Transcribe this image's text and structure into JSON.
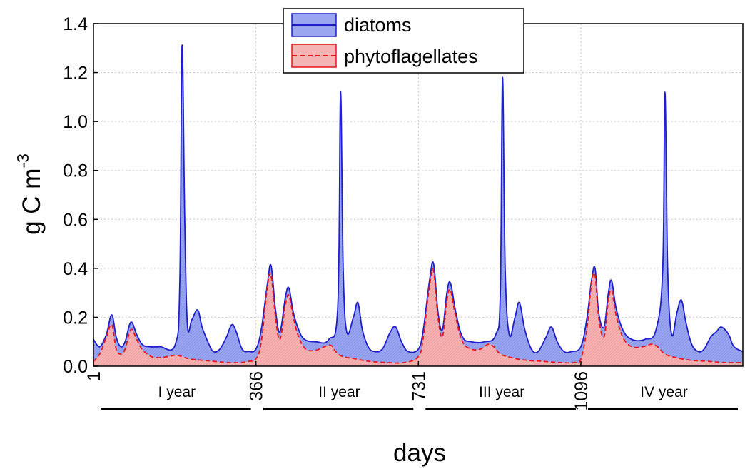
{
  "chart_data": {
    "type": "area",
    "title": "",
    "xlabel": "days",
    "ylabel": {
      "base": "g C m",
      "sup": "-3"
    },
    "xlim": [
      1,
      1460
    ],
    "ylim": [
      0,
      1.4
    ],
    "yticks": [
      "0.0",
      "0.2",
      "0.4",
      "0.6",
      "0.8",
      "1.0",
      "1.2",
      "1.4"
    ],
    "xticks": [
      {
        "value": 1,
        "label": "1"
      },
      {
        "value": 366,
        "label": "366"
      },
      {
        "value": 731,
        "label": "731"
      },
      {
        "value": 1096,
        "label": "1096"
      }
    ],
    "year_labels": [
      "I year",
      "II year",
      "III year",
      "IV year"
    ],
    "grid": true,
    "legend_position": "top-center",
    "colors": {
      "diatoms_line": "#1f1fcc",
      "diatoms_fill": "#9aa6ef",
      "phyto_line": "#e8161b",
      "phyto_fill": "#f6b3b3"
    },
    "series": [
      {
        "name": "diatoms",
        "style": "solid",
        "points": [
          [
            1,
            0.11
          ],
          [
            15,
            0.08
          ],
          [
            30,
            0.13
          ],
          [
            42,
            0.21
          ],
          [
            52,
            0.12
          ],
          [
            62,
            0.08
          ],
          [
            72,
            0.1
          ],
          [
            85,
            0.18
          ],
          [
            98,
            0.13
          ],
          [
            110,
            0.09
          ],
          [
            125,
            0.08
          ],
          [
            150,
            0.08
          ],
          [
            185,
            0.09
          ],
          [
            195,
            0.35
          ],
          [
            200,
            1.31
          ],
          [
            206,
            0.6
          ],
          [
            212,
            0.17
          ],
          [
            222,
            0.19
          ],
          [
            235,
            0.23
          ],
          [
            245,
            0.16
          ],
          [
            258,
            0.1
          ],
          [
            270,
            0.06
          ],
          [
            285,
            0.07
          ],
          [
            300,
            0.12
          ],
          [
            312,
            0.17
          ],
          [
            322,
            0.14
          ],
          [
            335,
            0.07
          ],
          [
            350,
            0.06
          ],
          [
            366,
            0.07
          ],
          [
            378,
            0.15
          ],
          [
            392,
            0.34
          ],
          [
            400,
            0.41
          ],
          [
            410,
            0.23
          ],
          [
            420,
            0.14
          ],
          [
            432,
            0.28
          ],
          [
            440,
            0.32
          ],
          [
            450,
            0.22
          ],
          [
            462,
            0.15
          ],
          [
            475,
            0.11
          ],
          [
            500,
            0.1
          ],
          [
            530,
            0.11
          ],
          [
            550,
            0.25
          ],
          [
            556,
            1.12
          ],
          [
            562,
            0.4
          ],
          [
            570,
            0.14
          ],
          [
            585,
            0.2
          ],
          [
            595,
            0.26
          ],
          [
            605,
            0.15
          ],
          [
            618,
            0.08
          ],
          [
            632,
            0.06
          ],
          [
            650,
            0.07
          ],
          [
            668,
            0.14
          ],
          [
            680,
            0.16
          ],
          [
            693,
            0.1
          ],
          [
            708,
            0.06
          ],
          [
            731,
            0.07
          ],
          [
            742,
            0.15
          ],
          [
            756,
            0.35
          ],
          [
            765,
            0.42
          ],
          [
            775,
            0.22
          ],
          [
            785,
            0.15
          ],
          [
            795,
            0.3
          ],
          [
            803,
            0.34
          ],
          [
            815,
            0.22
          ],
          [
            830,
            0.12
          ],
          [
            850,
            0.1
          ],
          [
            880,
            0.1
          ],
          [
            905,
            0.13
          ],
          [
            915,
            0.3
          ],
          [
            920,
            1.18
          ],
          [
            926,
            0.4
          ],
          [
            935,
            0.13
          ],
          [
            948,
            0.2
          ],
          [
            958,
            0.26
          ],
          [
            970,
            0.15
          ],
          [
            985,
            0.07
          ],
          [
            1000,
            0.06
          ],
          [
            1018,
            0.12
          ],
          [
            1030,
            0.16
          ],
          [
            1043,
            0.1
          ],
          [
            1058,
            0.06
          ],
          [
            1075,
            0.06
          ],
          [
            1096,
            0.08
          ],
          [
            1110,
            0.2
          ],
          [
            1120,
            0.35
          ],
          [
            1128,
            0.4
          ],
          [
            1136,
            0.22
          ],
          [
            1148,
            0.16
          ],
          [
            1158,
            0.3
          ],
          [
            1165,
            0.35
          ],
          [
            1175,
            0.24
          ],
          [
            1190,
            0.15
          ],
          [
            1210,
            0.11
          ],
          [
            1240,
            0.11
          ],
          [
            1265,
            0.15
          ],
          [
            1280,
            0.4
          ],
          [
            1285,
            1.12
          ],
          [
            1291,
            0.4
          ],
          [
            1300,
            0.13
          ],
          [
            1312,
            0.22
          ],
          [
            1322,
            0.27
          ],
          [
            1332,
            0.18
          ],
          [
            1345,
            0.09
          ],
          [
            1360,
            0.06
          ],
          [
            1373,
            0.07
          ],
          [
            1388,
            0.12
          ],
          [
            1400,
            0.14
          ],
          [
            1412,
            0.16
          ],
          [
            1428,
            0.13
          ],
          [
            1440,
            0.08
          ],
          [
            1460,
            0.06
          ]
        ]
      },
      {
        "name": "phytoflagellates",
        "style": "dashed",
        "points": [
          [
            1,
            0.02
          ],
          [
            15,
            0.05
          ],
          [
            30,
            0.12
          ],
          [
            42,
            0.17
          ],
          [
            52,
            0.07
          ],
          [
            62,
            0.05
          ],
          [
            72,
            0.07
          ],
          [
            85,
            0.15
          ],
          [
            98,
            0.11
          ],
          [
            110,
            0.07
          ],
          [
            130,
            0.04
          ],
          [
            150,
            0.035
          ],
          [
            170,
            0.04
          ],
          [
            185,
            0.045
          ],
          [
            200,
            0.04
          ],
          [
            215,
            0.03
          ],
          [
            240,
            0.025
          ],
          [
            270,
            0.02
          ],
          [
            300,
            0.015
          ],
          [
            330,
            0.015
          ],
          [
            350,
            0.02
          ],
          [
            366,
            0.03
          ],
          [
            378,
            0.1
          ],
          [
            392,
            0.33
          ],
          [
            400,
            0.37
          ],
          [
            410,
            0.2
          ],
          [
            420,
            0.11
          ],
          [
            432,
            0.25
          ],
          [
            440,
            0.29
          ],
          [
            450,
            0.2
          ],
          [
            462,
            0.12
          ],
          [
            478,
            0.07
          ],
          [
            500,
            0.065
          ],
          [
            520,
            0.08
          ],
          [
            535,
            0.085
          ],
          [
            545,
            0.06
          ],
          [
            560,
            0.04
          ],
          [
            590,
            0.03
          ],
          [
            620,
            0.02
          ],
          [
            660,
            0.015
          ],
          [
            700,
            0.015
          ],
          [
            731,
            0.04
          ],
          [
            742,
            0.12
          ],
          [
            756,
            0.33
          ],
          [
            765,
            0.39
          ],
          [
            775,
            0.2
          ],
          [
            785,
            0.12
          ],
          [
            795,
            0.27
          ],
          [
            803,
            0.31
          ],
          [
            815,
            0.2
          ],
          [
            830,
            0.1
          ],
          [
            850,
            0.07
          ],
          [
            870,
            0.07
          ],
          [
            888,
            0.09
          ],
          [
            900,
            0.08
          ],
          [
            915,
            0.05
          ],
          [
            940,
            0.035
          ],
          [
            970,
            0.025
          ],
          [
            1010,
            0.02
          ],
          [
            1050,
            0.015
          ],
          [
            1080,
            0.015
          ],
          [
            1096,
            0.03
          ],
          [
            1110,
            0.16
          ],
          [
            1120,
            0.34
          ],
          [
            1128,
            0.37
          ],
          [
            1136,
            0.2
          ],
          [
            1148,
            0.12
          ],
          [
            1158,
            0.27
          ],
          [
            1165,
            0.31
          ],
          [
            1175,
            0.21
          ],
          [
            1190,
            0.12
          ],
          [
            1210,
            0.08
          ],
          [
            1235,
            0.08
          ],
          [
            1255,
            0.09
          ],
          [
            1268,
            0.08
          ],
          [
            1285,
            0.05
          ],
          [
            1310,
            0.035
          ],
          [
            1340,
            0.025
          ],
          [
            1380,
            0.02
          ],
          [
            1420,
            0.015
          ],
          [
            1460,
            0.015
          ]
        ]
      }
    ]
  }
}
